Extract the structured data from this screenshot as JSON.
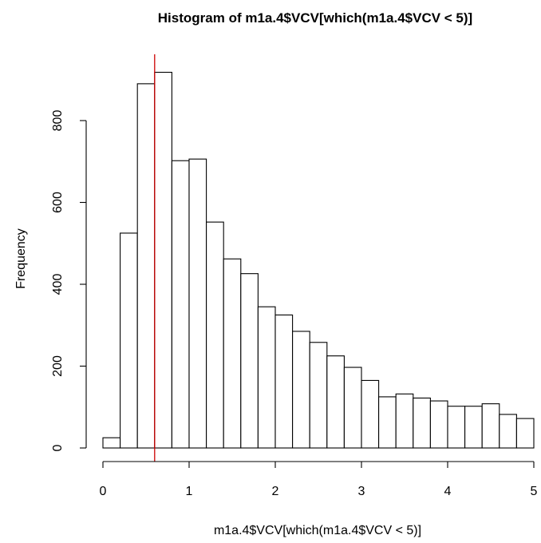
{
  "chart_data": {
    "type": "histogram",
    "title": "Histogram of m1a.4$VCV[which(m1a.4$VCV < 5)]",
    "xlabel": "m1a.4$VCV[which(m1a.4$VCV < 5)]",
    "ylabel": "Frequency",
    "xlim": [
      0,
      5
    ],
    "ylim": [
      0,
      920
    ],
    "bin_width": 0.2,
    "bins": [
      {
        "x0": 0.0,
        "x1": 0.2,
        "count": 25
      },
      {
        "x0": 0.2,
        "x1": 0.4,
        "count": 525
      },
      {
        "x0": 0.4,
        "x1": 0.6,
        "count": 890
      },
      {
        "x0": 0.6,
        "x1": 0.8,
        "count": 918
      },
      {
        "x0": 0.8,
        "x1": 1.0,
        "count": 702
      },
      {
        "x0": 1.0,
        "x1": 1.2,
        "count": 706
      },
      {
        "x0": 1.2,
        "x1": 1.4,
        "count": 552
      },
      {
        "x0": 1.4,
        "x1": 1.6,
        "count": 462
      },
      {
        "x0": 1.6,
        "x1": 1.8,
        "count": 426
      },
      {
        "x0": 1.8,
        "x1": 2.0,
        "count": 345
      },
      {
        "x0": 2.0,
        "x1": 2.2,
        "count": 325
      },
      {
        "x0": 2.2,
        "x1": 2.4,
        "count": 285
      },
      {
        "x0": 2.4,
        "x1": 2.6,
        "count": 258
      },
      {
        "x0": 2.6,
        "x1": 2.8,
        "count": 225
      },
      {
        "x0": 2.8,
        "x1": 3.0,
        "count": 197
      },
      {
        "x0": 3.0,
        "x1": 3.2,
        "count": 165
      },
      {
        "x0": 3.2,
        "x1": 3.4,
        "count": 125
      },
      {
        "x0": 3.4,
        "x1": 3.6,
        "count": 132
      },
      {
        "x0": 3.6,
        "x1": 3.8,
        "count": 122
      },
      {
        "x0": 3.8,
        "x1": 4.0,
        "count": 115
      },
      {
        "x0": 4.0,
        "x1": 4.2,
        "count": 102
      },
      {
        "x0": 4.2,
        "x1": 4.4,
        "count": 102
      },
      {
        "x0": 4.4,
        "x1": 4.6,
        "count": 108
      },
      {
        "x0": 4.6,
        "x1": 4.8,
        "count": 82
      },
      {
        "x0": 4.8,
        "x1": 5.0,
        "count": 72
      }
    ],
    "x_ticks": [
      0,
      1,
      2,
      3,
      4,
      5
    ],
    "x_tick_labels": [
      "0",
      "1",
      "2",
      "3",
      "4",
      "5"
    ],
    "y_ticks": [
      0,
      200,
      400,
      600,
      800
    ],
    "y_tick_labels": [
      "0",
      "200",
      "400",
      "600",
      "800"
    ],
    "vline": {
      "x": 0.6,
      "color": "#cc0000"
    },
    "bar_fill": "#ffffff",
    "bar_stroke": "#000000",
    "grid": false
  }
}
